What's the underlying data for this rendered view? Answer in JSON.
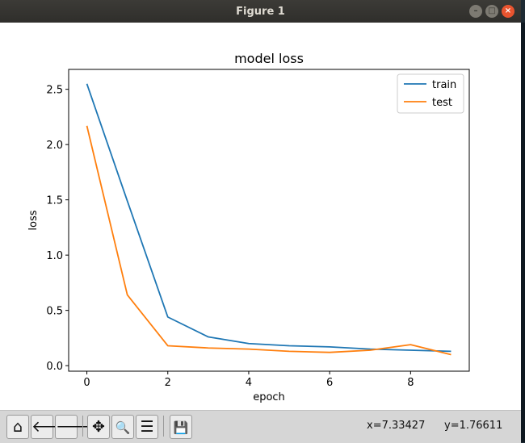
{
  "window": {
    "title": "Figure 1"
  },
  "toolbar": {
    "buttons": [
      {
        "name": "home-button",
        "icon": "home-icon",
        "glyph": "⌂"
      },
      {
        "name": "back-button",
        "icon": "arrow-left-icon",
        "glyph": "🡐"
      },
      {
        "name": "forward-button",
        "icon": "arrow-right-icon",
        "glyph": "🡒"
      },
      {
        "name": "pan-button",
        "icon": "move-icon",
        "glyph": "✥"
      },
      {
        "name": "zoom-button",
        "icon": "magnifier-icon",
        "glyph": "🔍"
      },
      {
        "name": "configure-subplots-button",
        "icon": "sliders-icon",
        "glyph": "☰"
      },
      {
        "name": "save-button",
        "icon": "floppy-icon",
        "glyph": "💾"
      }
    ],
    "x_readout": "x=7.33427",
    "y_readout": "y=1.76611"
  },
  "chart_data": {
    "type": "line",
    "title": "model loss",
    "xlabel": "epoch",
    "ylabel": "loss",
    "xlim": [
      -0.45,
      9.45
    ],
    "ylim": [
      -0.05,
      2.68
    ],
    "xticks": [
      0,
      2,
      4,
      6,
      8
    ],
    "yticks": [
      0.0,
      0.5,
      1.0,
      1.5,
      2.0,
      2.5
    ],
    "grid": false,
    "legend": "top-right",
    "x": [
      0,
      1,
      2,
      3,
      4,
      5,
      6,
      7,
      8,
      9
    ],
    "series": [
      {
        "name": "train",
        "color": "#1f77b4",
        "values": [
          2.55,
          1.49,
          0.44,
          0.26,
          0.2,
          0.18,
          0.17,
          0.15,
          0.14,
          0.13
        ]
      },
      {
        "name": "test",
        "color": "#ff7f0e",
        "values": [
          2.17,
          0.64,
          0.18,
          0.16,
          0.15,
          0.13,
          0.12,
          0.14,
          0.19,
          0.1
        ]
      }
    ]
  }
}
